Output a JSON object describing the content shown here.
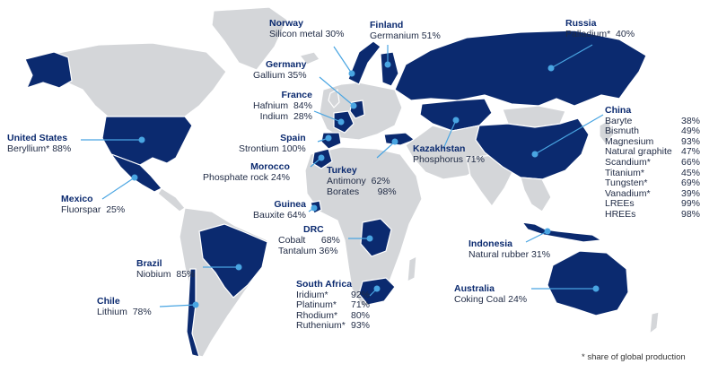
{
  "map": {
    "footnote": "* share of global production",
    "countries": [
      {
        "id": "norway",
        "name": "Norway",
        "items": [
          {
            "mineral": "Silicon metal",
            "share": "30%"
          }
        ]
      },
      {
        "id": "finland",
        "name": "Finland",
        "items": [
          {
            "mineral": "Germanium",
            "share": "51%"
          }
        ]
      },
      {
        "id": "russia",
        "name": "Russia",
        "items": [
          {
            "mineral": "Palladium*",
            "share": "40%"
          }
        ]
      },
      {
        "id": "germany",
        "name": "Germany",
        "items": [
          {
            "mineral": "Gallium",
            "share": "35%"
          }
        ]
      },
      {
        "id": "france",
        "name": "France",
        "items": [
          {
            "mineral": "Hafnium",
            "share": "84%"
          },
          {
            "mineral": "Indium",
            "share": "28%"
          }
        ]
      },
      {
        "id": "spain",
        "name": "Spain",
        "items": [
          {
            "mineral": "Strontium",
            "share": "100%"
          }
        ]
      },
      {
        "id": "morocco",
        "name": "Morocco",
        "items": [
          {
            "mineral": "Phosphate rock",
            "share": "24%"
          }
        ]
      },
      {
        "id": "usa",
        "name": "United States",
        "items": [
          {
            "mineral": "Beryllium*",
            "share": "88%"
          }
        ]
      },
      {
        "id": "mexico",
        "name": "Mexico",
        "items": [
          {
            "mineral": "Fluorspar",
            "share": "25%"
          }
        ]
      },
      {
        "id": "turkey",
        "name": "Turkey",
        "items": [
          {
            "mineral": "Antimony",
            "share": "62%"
          },
          {
            "mineral": "Borates",
            "share": "98%"
          }
        ]
      },
      {
        "id": "kazakhstan",
        "name": "Kazakhstan",
        "items": [
          {
            "mineral": "Phosphorus",
            "share": "71%"
          }
        ]
      },
      {
        "id": "guinea",
        "name": "Guinea",
        "items": [
          {
            "mineral": "Bauxite",
            "share": "64%"
          }
        ]
      },
      {
        "id": "drc",
        "name": "DRC",
        "items": [
          {
            "mineral": "Cobalt",
            "share": "68%"
          },
          {
            "mineral": "Tantalum",
            "share": "36%"
          }
        ]
      },
      {
        "id": "brazil",
        "name": "Brazil",
        "items": [
          {
            "mineral": "Niobium",
            "share": "85%"
          }
        ]
      },
      {
        "id": "chile",
        "name": "Chile",
        "items": [
          {
            "mineral": "Lithium",
            "share": "78%"
          }
        ]
      },
      {
        "id": "south_africa",
        "name": "South Africa",
        "items": [
          {
            "mineral": "Iridium*",
            "share": "92%"
          },
          {
            "mineral": "Platinum*",
            "share": "71%"
          },
          {
            "mineral": "Rhodium*",
            "share": "80%"
          },
          {
            "mineral": "Ruthenium*",
            "share": "93%"
          }
        ]
      },
      {
        "id": "indonesia",
        "name": "Indonesia",
        "items": [
          {
            "mineral": "Natural rubber",
            "share": "31%"
          }
        ]
      },
      {
        "id": "australia",
        "name": "Australia",
        "items": [
          {
            "mineral": "Coking Coal",
            "share": "24%"
          }
        ]
      },
      {
        "id": "china",
        "name": "China",
        "items": [
          {
            "mineral": "Baryte",
            "share": "38%"
          },
          {
            "mineral": "Bismuth",
            "share": "49%"
          },
          {
            "mineral": "Magnesium",
            "share": "93%"
          },
          {
            "mineral": "Natural graphite",
            "share": "47%"
          },
          {
            "mineral": "Scandium*",
            "share": "66%"
          },
          {
            "mineral": "Titanium*",
            "share": "45%"
          },
          {
            "mineral": "Tungsten*",
            "share": "69%"
          },
          {
            "mineral": "Vanadium*",
            "share": "39%"
          },
          {
            "mineral": "LREEs",
            "share": "99%"
          },
          {
            "mineral": "HREEs",
            "share": "98%"
          }
        ]
      }
    ],
    "colors": {
      "highlight": "#0b2a6f",
      "land": "#d4d6d9",
      "leader": "#49a5e2"
    }
  }
}
